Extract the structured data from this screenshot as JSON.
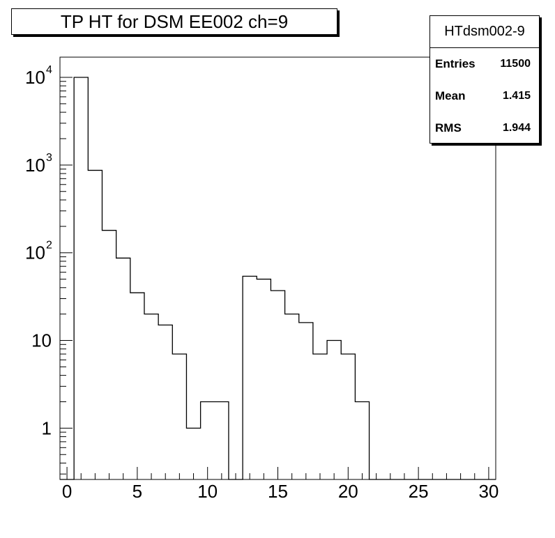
{
  "title": "TP HT for DSM EE002 ch=9",
  "stats": {
    "name": "HTdsm002-9",
    "rows": [
      {
        "label": "Entries",
        "value": "11500"
      },
      {
        "label": "Mean",
        "value": "1.415"
      },
      {
        "label": "RMS",
        "value": "1.944"
      }
    ]
  },
  "chart_data": {
    "type": "bar",
    "histogram": true,
    "title": "TP HT for DSM EE002 ch=9",
    "xlabel": "",
    "ylabel": "",
    "xlim": [
      -0.5,
      30.5
    ],
    "ylim": [
      0.26,
      17000
    ],
    "ylog": true,
    "x_ticks": [
      0,
      5,
      10,
      15,
      20,
      25,
      30
    ],
    "y_ticks": [
      {
        "value": 1,
        "label": "1"
      },
      {
        "value": 10,
        "label": "10"
      },
      {
        "value": 100,
        "base": "10",
        "exp": "2"
      },
      {
        "value": 1000,
        "base": "10",
        "exp": "3"
      },
      {
        "value": 10000,
        "base": "10",
        "exp": "4"
      }
    ],
    "bins": [
      {
        "x": 0,
        "value": 0
      },
      {
        "x": 1,
        "value": 10000
      },
      {
        "x": 2,
        "value": 870
      },
      {
        "x": 3,
        "value": 180
      },
      {
        "x": 4,
        "value": 87
      },
      {
        "x": 5,
        "value": 35
      },
      {
        "x": 6,
        "value": 20
      },
      {
        "x": 7,
        "value": 15
      },
      {
        "x": 8,
        "value": 7
      },
      {
        "x": 9,
        "value": 1
      },
      {
        "x": 10,
        "value": 2
      },
      {
        "x": 11,
        "value": 2
      },
      {
        "x": 12,
        "value": 0
      },
      {
        "x": 13,
        "value": 54
      },
      {
        "x": 14,
        "value": 50
      },
      {
        "x": 15,
        "value": 37
      },
      {
        "x": 16,
        "value": 20
      },
      {
        "x": 17,
        "value": 16
      },
      {
        "x": 18,
        "value": 7
      },
      {
        "x": 19,
        "value": 10
      },
      {
        "x": 20,
        "value": 7
      },
      {
        "x": 21,
        "value": 2
      },
      {
        "x": 22,
        "value": 0
      },
      {
        "x": 23,
        "value": 0
      },
      {
        "x": 24,
        "value": 0
      },
      {
        "x": 25,
        "value": 0
      },
      {
        "x": 26,
        "value": 0
      },
      {
        "x": 27,
        "value": 0
      },
      {
        "x": 28,
        "value": 0
      },
      {
        "x": 29,
        "value": 0
      },
      {
        "x": 30,
        "value": 0
      }
    ],
    "grid": false,
    "line_color": "#000000"
  }
}
